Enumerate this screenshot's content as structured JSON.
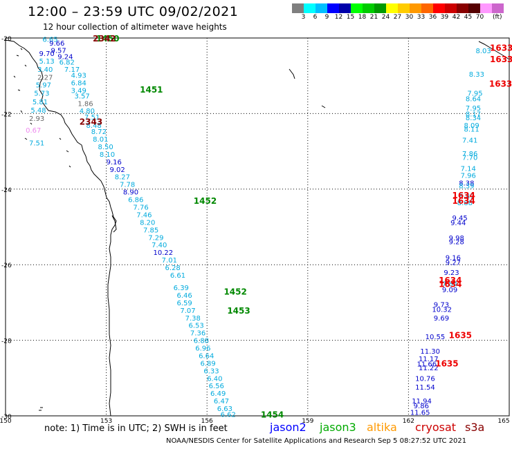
{
  "header": {
    "title": "12:00 – 23:59 UTC 09/02/2021",
    "subtitle": "12 hour collection of altimeter wave heights",
    "scale_colors": [
      "#7f7f7f",
      "#00ffff",
      "#00bfff",
      "#0000ff",
      "#0000aa",
      "#00ff00",
      "#00cc00",
      "#009900",
      "#ffff00",
      "#ffcc00",
      "#ff9900",
      "#ff6600",
      "#ff0000",
      "#cc0000",
      "#880000",
      "#550000",
      "#ff99ff",
      "#cc66cc",
      "#000000"
    ],
    "scale_labels": [
      "3",
      "6",
      "9",
      "12",
      "15",
      "18",
      "21",
      "24",
      "27",
      "30",
      "33",
      "36",
      "39",
      "42",
      "45",
      "70"
    ],
    "scale_unit": "(ft)"
  },
  "map": {
    "lon_labels": [
      "150",
      "153",
      "156",
      "159",
      "162",
      "165"
    ],
    "lat_labels": [
      "-20",
      "-22",
      "-24",
      "-26",
      "-28",
      "-30"
    ],
    "pass_labels": [
      {
        "text": "1450",
        "color": "#008800",
        "lon": 152.7,
        "lat": -20.0
      },
      {
        "text": "2342",
        "color": "#880000",
        "lon": 152.6,
        "lat": -20.0
      },
      {
        "text": "1451",
        "color": "#008800",
        "lon": 154.0,
        "lat": -21.35
      },
      {
        "text": "2343",
        "color": "#880000",
        "lon": 152.2,
        "lat": -22.2
      },
      {
        "text": "1452",
        "color": "#008800",
        "lon": 155.6,
        "lat": -24.3
      },
      {
        "text": "1452",
        "color": "#008800",
        "lon": 156.5,
        "lat": -26.7
      },
      {
        "text": "1453",
        "color": "#008800",
        "lon": 156.6,
        "lat": -27.2
      },
      {
        "text": "1454",
        "color": "#008800",
        "lon": 157.6,
        "lat": -29.95
      },
      {
        "text": "1633",
        "color": "#ee0000",
        "lon": 164.5,
        "lat": -20.25
      },
      {
        "text": "1633",
        "color": "#ee0000",
        "lon": 164.5,
        "lat": -20.55
      },
      {
        "text": "1633",
        "color": "#ee0000",
        "lon": 164.4,
        "lat": -21.2
      },
      {
        "text": "1634",
        "color": "#ee0000",
        "lon": 163.3,
        "lat": -24.15
      },
      {
        "text": "1634",
        "color": "#ee0000",
        "lon": 163.3,
        "lat": -24.3
      },
      {
        "text": "1634",
        "color": "#ee0000",
        "lon": 162.9,
        "lat": -26.4
      },
      {
        "text": "1634",
        "color": "#ee0000",
        "lon": 162.9,
        "lat": -26.5
      },
      {
        "text": "1635",
        "color": "#ee0000",
        "lon": 163.2,
        "lat": -27.85
      },
      {
        "text": "1635",
        "color": "#ee0000",
        "lon": 162.8,
        "lat": -28.6
      }
    ],
    "readings": [
      {
        "v": "6.65",
        "color": "#00aadd",
        "lon": 151.1,
        "lat": -20.03
      },
      {
        "v": "9.66",
        "color": "#0000cc",
        "lon": 151.3,
        "lat": -20.13
      },
      {
        "v": "9.57",
        "color": "#0000cc",
        "lon": 151.35,
        "lat": -20.32
      },
      {
        "v": "9.70",
        "color": "#0000cc",
        "lon": 151.0,
        "lat": -20.4
      },
      {
        "v": "9.24",
        "color": "#0000cc",
        "lon": 151.55,
        "lat": -20.48
      },
      {
        "v": "5.13",
        "color": "#00aadd",
        "lon": 151.0,
        "lat": -20.6
      },
      {
        "v": "6.82",
        "color": "#00aadd",
        "lon": 151.6,
        "lat": -20.63
      },
      {
        "v": "3.40",
        "color": "#00aadd",
        "lon": 150.95,
        "lat": -20.82
      },
      {
        "v": "7.17",
        "color": "#00aadd",
        "lon": 151.75,
        "lat": -20.82
      },
      {
        "v": "2.27",
        "color": "#666666",
        "lon": 150.95,
        "lat": -21.03
      },
      {
        "v": "4.93",
        "color": "#00aadd",
        "lon": 151.95,
        "lat": -20.98
      },
      {
        "v": "5.97",
        "color": "#00aadd",
        "lon": 150.9,
        "lat": -21.23
      },
      {
        "v": "6.84",
        "color": "#00aadd",
        "lon": 151.95,
        "lat": -21.18
      },
      {
        "v": "3.49",
        "color": "#00aadd",
        "lon": 151.95,
        "lat": -21.38
      },
      {
        "v": "5.73",
        "color": "#00aadd",
        "lon": 150.85,
        "lat": -21.45
      },
      {
        "v": "3.57",
        "color": "#00aadd",
        "lon": 152.05,
        "lat": -21.53
      },
      {
        "v": "5.81",
        "color": "#00aadd",
        "lon": 150.8,
        "lat": -21.68
      },
      {
        "v": "1.86",
        "color": "#666666",
        "lon": 152.15,
        "lat": -21.73
      },
      {
        "v": "5.48",
        "color": "#00aadd",
        "lon": 150.75,
        "lat": -21.9
      },
      {
        "v": "4.80",
        "color": "#00aadd",
        "lon": 152.2,
        "lat": -21.92
      },
      {
        "v": "2.93",
        "color": "#666666",
        "lon": 150.7,
        "lat": -22.12
      },
      {
        "v": "7.51",
        "color": "#00aadd",
        "lon": 152.35,
        "lat": -22.08
      },
      {
        "v": "8.48",
        "color": "#00aadd",
        "lon": 152.4,
        "lat": -22.3
      },
      {
        "v": "0.67",
        "color": "#ee88ee",
        "lon": 150.6,
        "lat": -22.43
      },
      {
        "v": "8.72",
        "color": "#00aadd",
        "lon": 152.55,
        "lat": -22.47
      },
      {
        "v": "8.01",
        "color": "#00aadd",
        "lon": 152.6,
        "lat": -22.67
      },
      {
        "v": "7.51",
        "color": "#00aadd",
        "lon": 150.7,
        "lat": -22.77
      },
      {
        "v": "8.50",
        "color": "#00aadd",
        "lon": 152.75,
        "lat": -22.87
      },
      {
        "v": "8.10",
        "color": "#00aadd",
        "lon": 152.8,
        "lat": -23.07
      },
      {
        "v": "9.16",
        "color": "#0000cc",
        "lon": 153.0,
        "lat": -23.27
      },
      {
        "v": "9.02",
        "color": "#0000cc",
        "lon": 153.1,
        "lat": -23.47
      },
      {
        "v": "8.27",
        "color": "#00aadd",
        "lon": 153.25,
        "lat": -23.67
      },
      {
        "v": "7.78",
        "color": "#00aadd",
        "lon": 153.4,
        "lat": -23.87
      },
      {
        "v": "8.90",
        "color": "#0000cc",
        "lon": 153.5,
        "lat": -24.07
      },
      {
        "v": "6.86",
        "color": "#00aadd",
        "lon": 153.65,
        "lat": -24.27
      },
      {
        "v": "7.76",
        "color": "#00aadd",
        "lon": 153.8,
        "lat": -24.47
      },
      {
        "v": "7.46",
        "color": "#00aadd",
        "lon": 153.9,
        "lat": -24.67
      },
      {
        "v": "8.20",
        "color": "#00aadd",
        "lon": 154.0,
        "lat": -24.87
      },
      {
        "v": "7.85",
        "color": "#00aadd",
        "lon": 154.1,
        "lat": -25.07
      },
      {
        "v": "7.29",
        "color": "#00aadd",
        "lon": 154.25,
        "lat": -25.27
      },
      {
        "v": "7.40",
        "color": "#00aadd",
        "lon": 154.35,
        "lat": -25.47
      },
      {
        "v": "10.22",
        "color": "#0000cc",
        "lon": 154.4,
        "lat": -25.67
      },
      {
        "v": "7.01",
        "color": "#00aadd",
        "lon": 154.65,
        "lat": -25.87
      },
      {
        "v": "6.28",
        "color": "#00aadd",
        "lon": 154.75,
        "lat": -26.07
      },
      {
        "v": "6.61",
        "color": "#00aadd",
        "lon": 154.9,
        "lat": -26.27
      },
      {
        "v": "6.39",
        "color": "#00aadd",
        "lon": 155.0,
        "lat": -26.6
      },
      {
        "v": "6.46",
        "color": "#00aadd",
        "lon": 155.1,
        "lat": -26.8
      },
      {
        "v": "6.59",
        "color": "#00aadd",
        "lon": 155.1,
        "lat": -27.0
      },
      {
        "v": "7.07",
        "color": "#00aadd",
        "lon": 155.2,
        "lat": -27.2
      },
      {
        "v": "7.38",
        "color": "#00aadd",
        "lon": 155.35,
        "lat": -27.4
      },
      {
        "v": "6.53",
        "color": "#00aadd",
        "lon": 155.45,
        "lat": -27.6
      },
      {
        "v": "7.36",
        "color": "#00aadd",
        "lon": 155.5,
        "lat": -27.8
      },
      {
        "v": "6.88",
        "color": "#00aadd",
        "lon": 155.6,
        "lat": -28.0
      },
      {
        "v": "6.96",
        "color": "#00aadd",
        "lon": 155.65,
        "lat": -28.2
      },
      {
        "v": "6.64",
        "color": "#00aadd",
        "lon": 155.75,
        "lat": -28.4
      },
      {
        "v": "6.89",
        "color": "#00aadd",
        "lon": 155.8,
        "lat": -28.6
      },
      {
        "v": "6.33",
        "color": "#00aadd",
        "lon": 155.9,
        "lat": -28.8
      },
      {
        "v": "6.40",
        "color": "#00aadd",
        "lon": 156.0,
        "lat": -29.0
      },
      {
        "v": "6.56",
        "color": "#00aadd",
        "lon": 156.05,
        "lat": -29.2
      },
      {
        "v": "6.49",
        "color": "#00aadd",
        "lon": 156.1,
        "lat": -29.4
      },
      {
        "v": "6.47",
        "color": "#00aadd",
        "lon": 156.2,
        "lat": -29.6
      },
      {
        "v": "6.63",
        "color": "#00aadd",
        "lon": 156.3,
        "lat": -29.8
      },
      {
        "v": "6.62",
        "color": "#00aadd",
        "lon": 156.4,
        "lat": -29.95
      },
      {
        "v": "8.03",
        "color": "#00aadd",
        "lon": 164.0,
        "lat": -20.33
      },
      {
        "v": "8.33",
        "color": "#00aadd",
        "lon": 163.8,
        "lat": -20.95
      },
      {
        "v": "7.95",
        "color": "#00aadd",
        "lon": 163.75,
        "lat": -21.45
      },
      {
        "v": "8.64",
        "color": "#00aadd",
        "lon": 163.7,
        "lat": -21.6
      },
      {
        "v": "7.95",
        "color": "#00aadd",
        "lon": 163.7,
        "lat": -21.85
      },
      {
        "v": "8.17",
        "color": "#00aadd",
        "lon": 163.7,
        "lat": -22.0
      },
      {
        "v": "8.34",
        "color": "#00aadd",
        "lon": 163.7,
        "lat": -22.1
      },
      {
        "v": "8.09",
        "color": "#00aadd",
        "lon": 163.65,
        "lat": -22.3
      },
      {
        "v": "8.11",
        "color": "#00aadd",
        "lon": 163.65,
        "lat": -22.4
      },
      {
        "v": "7.41",
        "color": "#00aadd",
        "lon": 163.6,
        "lat": -22.7
      },
      {
        "v": "7.86",
        "color": "#00aadd",
        "lon": 163.6,
        "lat": -23.05
      },
      {
        "v": "7.70",
        "color": "#00aadd",
        "lon": 163.6,
        "lat": -23.15
      },
      {
        "v": "7.14",
        "color": "#00aadd",
        "lon": 163.55,
        "lat": -23.45
      },
      {
        "v": "7.96",
        "color": "#00aadd",
        "lon": 163.55,
        "lat": -23.63
      },
      {
        "v": "8.38",
        "color": "#0000cc",
        "lon": 163.5,
        "lat": -23.83
      },
      {
        "v": "8.39",
        "color": "#00aadd",
        "lon": 163.5,
        "lat": -23.9
      },
      {
        "v": "8.87",
        "color": "#00aadd",
        "lon": 163.5,
        "lat": -24.18
      },
      {
        "v": "8.88",
        "color": "#00aadd",
        "lon": 163.45,
        "lat": -24.35
      },
      {
        "v": "9.45",
        "color": "#0000cc",
        "lon": 163.3,
        "lat": -24.75
      },
      {
        "v": "9.44",
        "color": "#0000cc",
        "lon": 163.25,
        "lat": -24.88
      },
      {
        "v": "9.98",
        "color": "#0000cc",
        "lon": 163.2,
        "lat": -25.28
      },
      {
        "v": "9.28",
        "color": "#0000cc",
        "lon": 163.2,
        "lat": -25.38
      },
      {
        "v": "9.16",
        "color": "#0000cc",
        "lon": 163.1,
        "lat": -25.8
      },
      {
        "v": "9.27",
        "color": "#0000cc",
        "lon": 163.1,
        "lat": -25.93
      },
      {
        "v": "9.23",
        "color": "#0000cc",
        "lon": 163.05,
        "lat": -26.2
      },
      {
        "v": "7.84",
        "color": "#00aadd",
        "lon": 163.0,
        "lat": -26.5
      },
      {
        "v": "9.09",
        "color": "#0000cc",
        "lon": 163.0,
        "lat": -26.65
      },
      {
        "v": "9.73",
        "color": "#0000cc",
        "lon": 162.75,
        "lat": -27.05
      },
      {
        "v": "10.32",
        "color": "#0000cc",
        "lon": 162.7,
        "lat": -27.18
      },
      {
        "v": "9.69",
        "color": "#0000cc",
        "lon": 162.75,
        "lat": -27.4
      },
      {
        "v": "10.55",
        "color": "#0000cc",
        "lon": 162.5,
        "lat": -27.9
      },
      {
        "v": "11.30",
        "color": "#0000cc",
        "lon": 162.35,
        "lat": -28.28
      },
      {
        "v": "11.17",
        "color": "#0000cc",
        "lon": 162.3,
        "lat": -28.48
      },
      {
        "v": "11.66",
        "color": "#0000cc",
        "lon": 162.25,
        "lat": -28.62
      },
      {
        "v": "11.22",
        "color": "#0000cc",
        "lon": 162.3,
        "lat": -28.72
      },
      {
        "v": "10.76",
        "color": "#0000cc",
        "lon": 162.2,
        "lat": -29.0
      },
      {
        "v": "11.54",
        "color": "#0000cc",
        "lon": 162.2,
        "lat": -29.23
      },
      {
        "v": "11.94",
        "color": "#0000cc",
        "lon": 162.1,
        "lat": -29.6
      },
      {
        "v": "9.86",
        "color": "#0000cc",
        "lon": 162.15,
        "lat": -29.73
      },
      {
        "v": "11.65",
        "color": "#0000cc",
        "lon": 162.05,
        "lat": -29.9
      }
    ]
  },
  "footer": {
    "note": "note: 1) Time is in UTC; 2) SWH is in feet",
    "sat1": "jason2",
    "sat2": "jason3",
    "sat3": "altika",
    "sat4": "cryosat",
    "sat5": "s3a",
    "colors": {
      "jason2": "#0000ff",
      "jason3": "#00aa00",
      "altika": "#ff9900",
      "cryosat": "#cc0000",
      "s3a": "#880000"
    },
    "credit": "NOAA/NESDIS Center for Satellite Applications and Research   Sep  5 08:27:52 UTC 2021"
  }
}
